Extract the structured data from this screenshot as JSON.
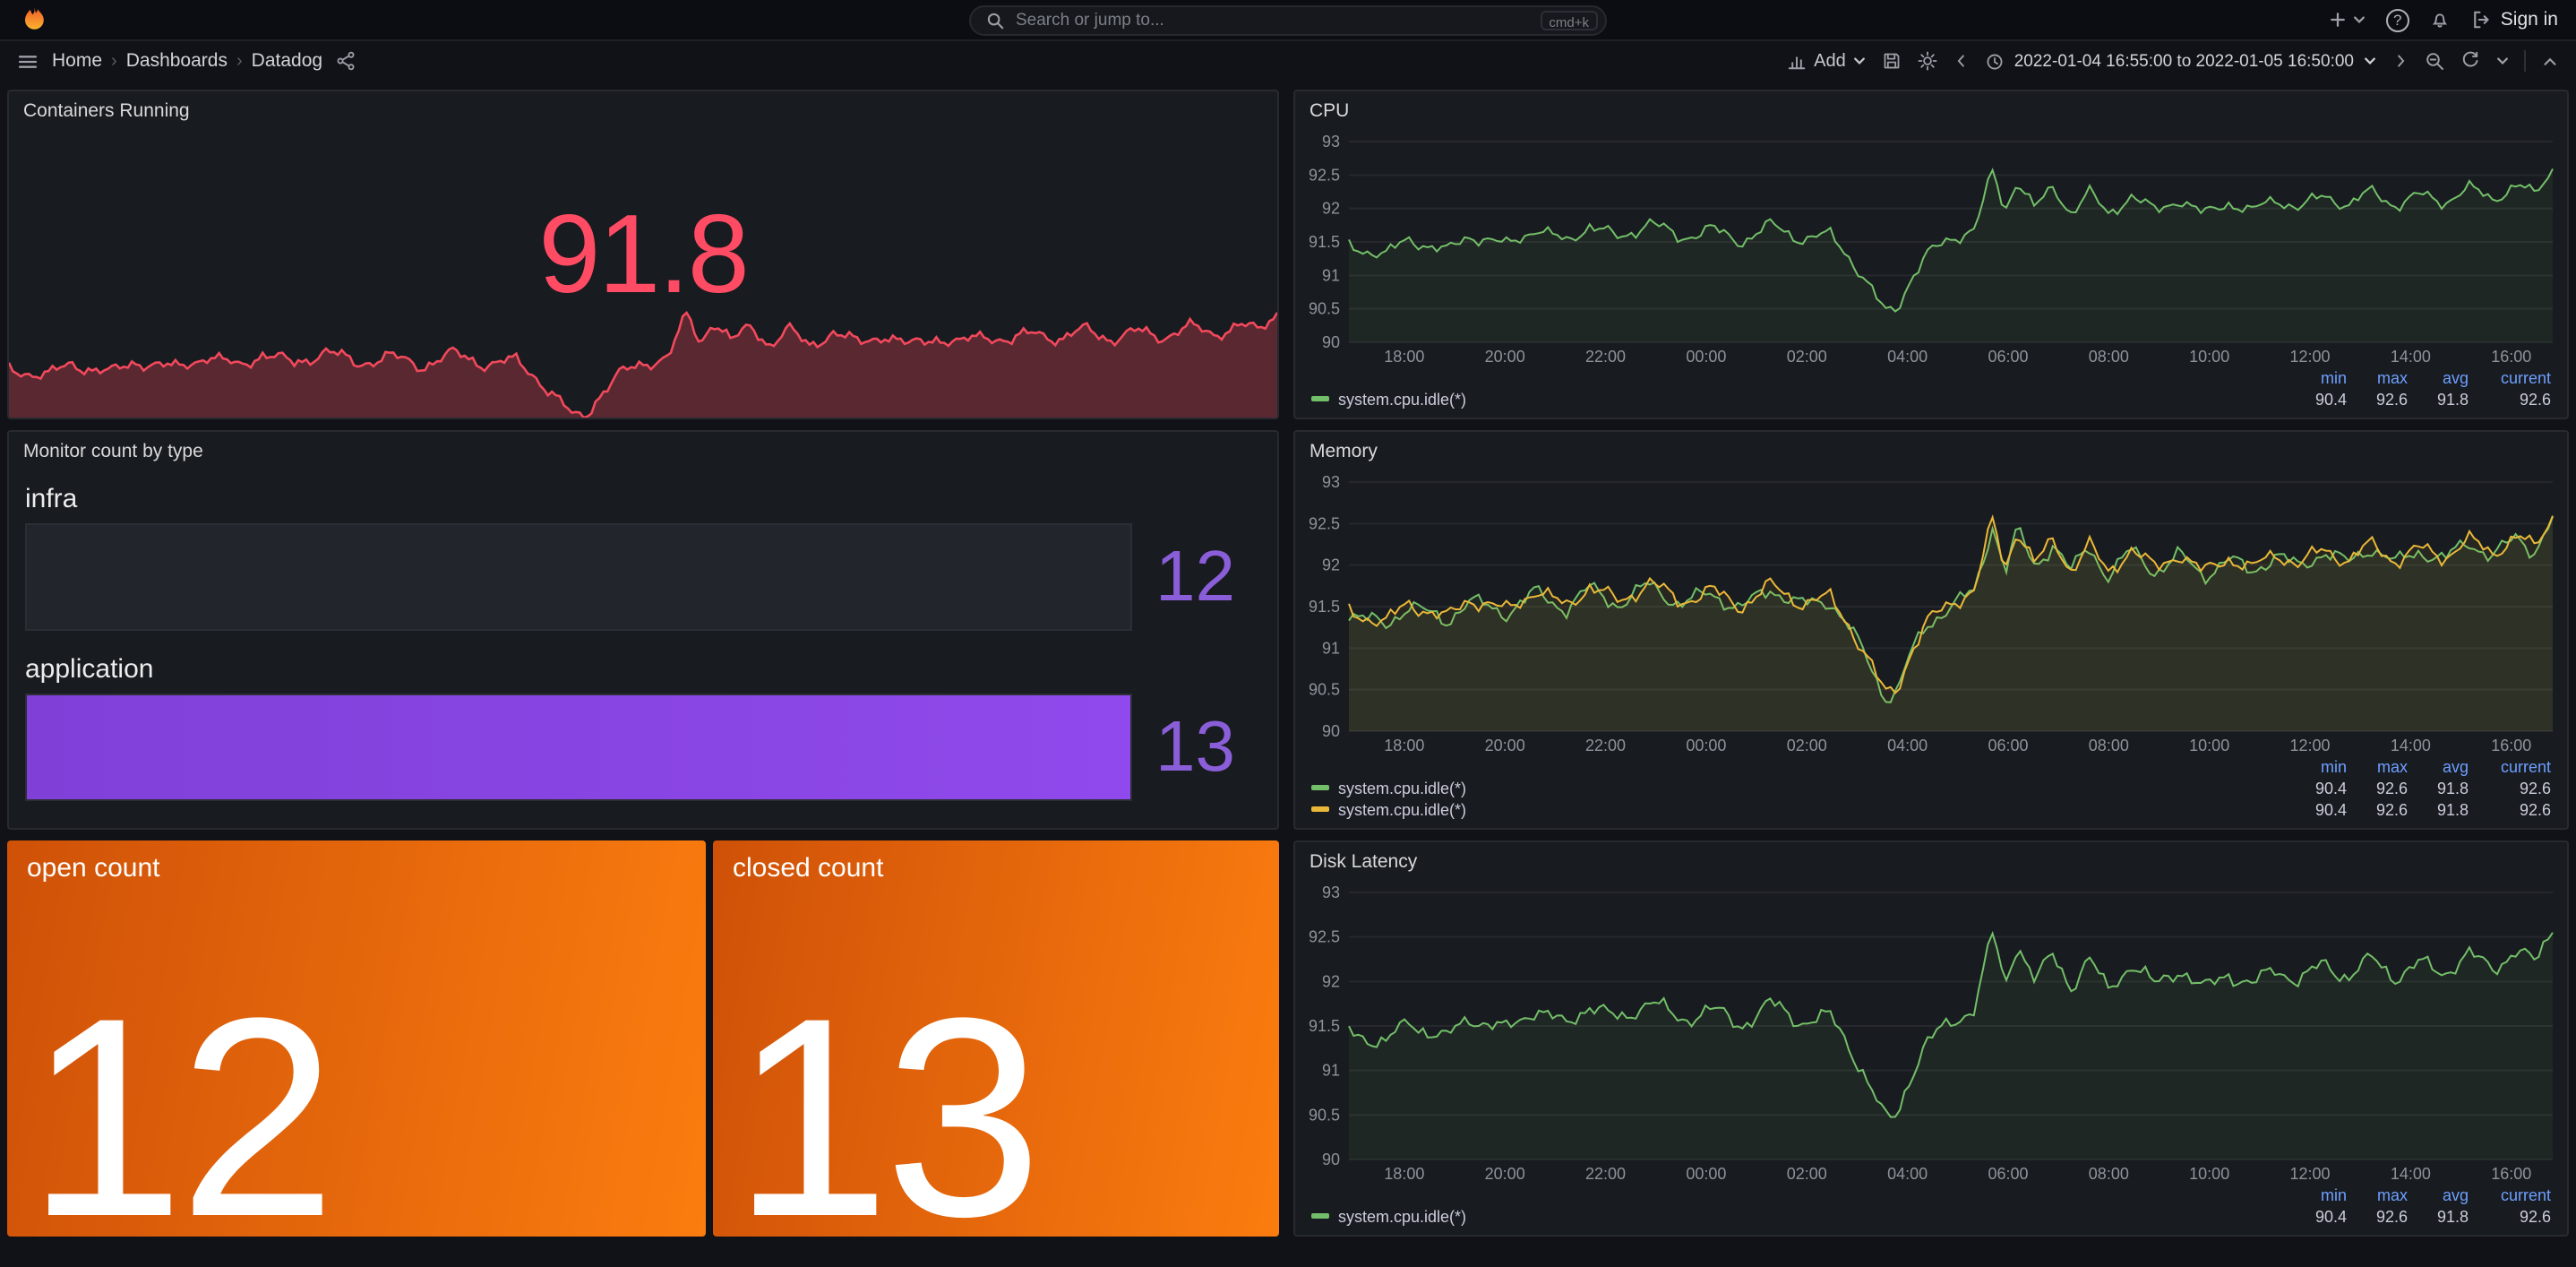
{
  "topnav": {
    "search_placeholder": "Search or jump to...",
    "shortcut_badge": "cmd+k",
    "help_glyph": "?",
    "sign_in_label": "Sign in"
  },
  "toolbar": {
    "breadcrumb": [
      "Home",
      "Dashboards",
      "Datadog"
    ],
    "breadcrumb_separator": "›",
    "add_label": "Add",
    "time_range": "2022-01-04 16:55:00 to 2022-01-05 16:50:00"
  },
  "panels": {
    "containers": {
      "title": "Containers Running",
      "value": "91.8",
      "value_color": "#ff4b63"
    },
    "monitor": {
      "title": "Monitor count by type",
      "value_color": "#8a5ed8",
      "bar_color": "#8040d8",
      "bars": [
        {
          "label": "infra",
          "value": "12",
          "fill_pct": 0
        },
        {
          "label": "application",
          "value": "13",
          "fill_pct": 100
        }
      ]
    },
    "open_count": {
      "title": "open count",
      "value": "12",
      "bg": [
        "#cf5108",
        "#fb7d0f"
      ]
    },
    "closed_count": {
      "title": "closed count",
      "value": "13",
      "bg": [
        "#cf5108",
        "#fb7d0f"
      ]
    },
    "cpu": {
      "title": "CPU"
    },
    "memory": {
      "title": "Memory"
    },
    "disk": {
      "title": "Disk Latency"
    }
  },
  "chart_data": {
    "type": "line",
    "title": "system.cpu.idle time series (CPU / Memory / Disk Latency panels)",
    "x_ticks": [
      "18:00",
      "20:00",
      "22:00",
      "00:00",
      "02:00",
      "04:00",
      "06:00",
      "08:00",
      "10:00",
      "12:00",
      "14:00",
      "16:00"
    ],
    "x_tick_start_frac": 0.046,
    "x_tick_step_frac": 0.0836,
    "y_ticks": [
      "90",
      "90.5",
      "91",
      "91.5",
      "92",
      "92.5",
      "93"
    ],
    "y_min": 90,
    "y_max": 93,
    "grid": true,
    "legend_position": "bottom",
    "stats_headers": [
      "min",
      "max",
      "avg",
      "current"
    ],
    "base_series": [
      [
        0,
        91.45
      ],
      [
        0.03,
        91.3
      ],
      [
        0.05,
        91.55
      ],
      [
        0.08,
        91.35
      ],
      [
        0.1,
        91.6
      ],
      [
        0.13,
        91.45
      ],
      [
        0.155,
        91.7
      ],
      [
        0.18,
        91.5
      ],
      [
        0.2,
        91.75
      ],
      [
        0.225,
        91.55
      ],
      [
        0.25,
        91.8
      ],
      [
        0.275,
        91.55
      ],
      [
        0.3,
        91.7
      ],
      [
        0.325,
        91.5
      ],
      [
        0.35,
        91.75
      ],
      [
        0.375,
        91.55
      ],
      [
        0.4,
        91.6
      ],
      [
        0.415,
        91.3
      ],
      [
        0.43,
        90.9
      ],
      [
        0.445,
        90.45
      ],
      [
        0.455,
        90.5
      ],
      [
        0.465,
        90.9
      ],
      [
        0.48,
        91.3
      ],
      [
        0.5,
        91.55
      ],
      [
        0.52,
        91.7
      ],
      [
        0.535,
        92.55
      ],
      [
        0.545,
        91.95
      ],
      [
        0.555,
        92.45
      ],
      [
        0.57,
        92.0
      ],
      [
        0.585,
        92.3
      ],
      [
        0.6,
        91.95
      ],
      [
        0.615,
        92.25
      ],
      [
        0.63,
        91.9
      ],
      [
        0.65,
        92.2
      ],
      [
        0.67,
        91.95
      ],
      [
        0.69,
        92.15
      ],
      [
        0.71,
        91.9
      ],
      [
        0.73,
        92.1
      ],
      [
        0.75,
        91.95
      ],
      [
        0.77,
        92.15
      ],
      [
        0.79,
        92.0
      ],
      [
        0.81,
        92.2
      ],
      [
        0.83,
        92.05
      ],
      [
        0.85,
        92.25
      ],
      [
        0.87,
        92.05
      ],
      [
        0.89,
        92.2
      ],
      [
        0.91,
        92.1
      ],
      [
        0.93,
        92.3
      ],
      [
        0.95,
        92.15
      ],
      [
        0.97,
        92.35
      ],
      [
        0.985,
        92.2
      ],
      [
        1,
        92.6
      ]
    ],
    "panels": {
      "containers_spark": {
        "kind": "spark",
        "color": "#f2495c",
        "fill_opacity": 0.3,
        "seed": 3,
        "amp": 0.18,
        "y_min": 90.45,
        "y_max": 93.3
      },
      "cpu": {
        "kind": "ts",
        "series": [
          {
            "name": "system.cpu.idle(*)",
            "color": "#73bf69",
            "seed": 3,
            "amp": 0.13,
            "stats": [
              "90.4",
              "92.6",
              "91.8",
              "92.6"
            ]
          }
        ]
      },
      "memory": {
        "kind": "ts",
        "series": [
          {
            "name": "system.cpu.idle(*)",
            "color": "#73bf69",
            "seed": 8,
            "amp": 0.13,
            "offset": -0.03,
            "stats": [
              "90.4",
              "92.6",
              "91.8",
              "92.6"
            ]
          },
          {
            "name": "system.cpu.idle(*)",
            "color": "#eab839",
            "seed": 3,
            "amp": 0.13,
            "stats": [
              "90.4",
              "92.6",
              "91.8",
              "92.6"
            ]
          }
        ]
      },
      "disk": {
        "kind": "ts",
        "series": [
          {
            "name": "system.cpu.idle(*)",
            "color": "#73bf69",
            "seed": 5,
            "amp": 0.13,
            "stats": [
              "90.4",
              "92.6",
              "91.8",
              "92.6"
            ]
          }
        ]
      }
    }
  }
}
